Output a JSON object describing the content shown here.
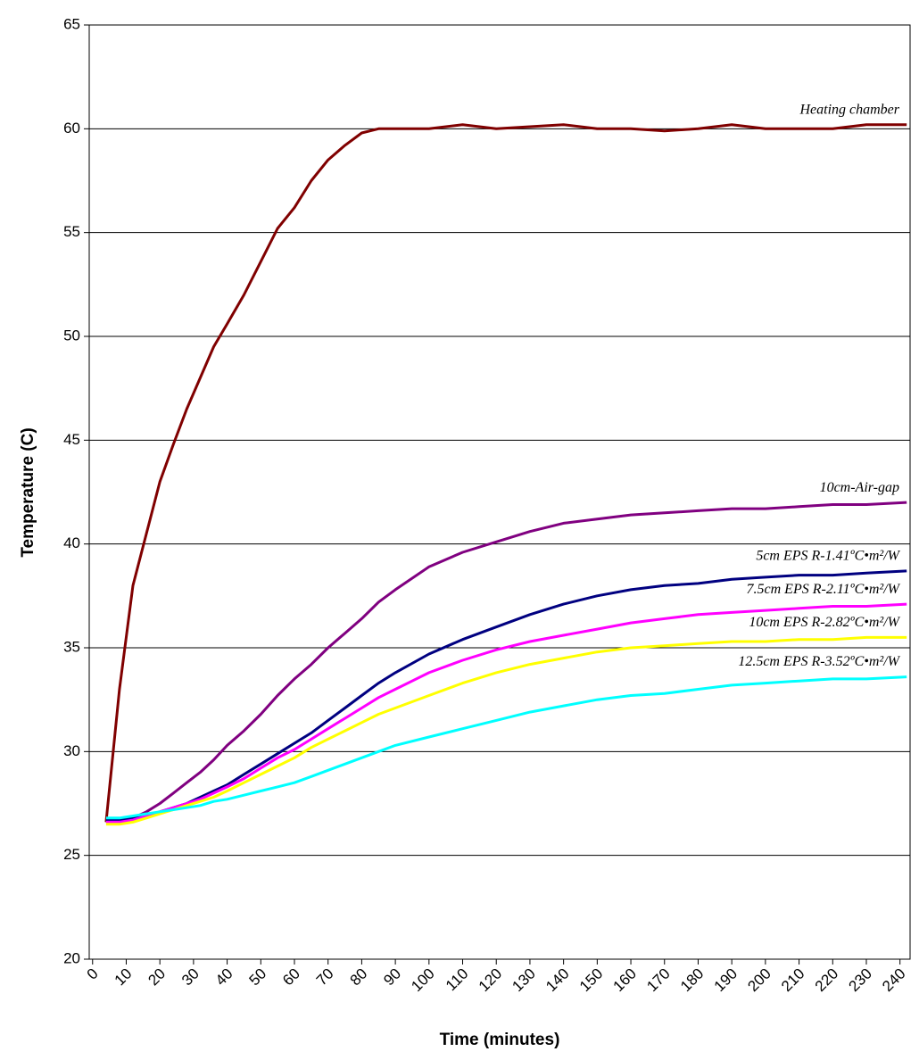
{
  "chart_data": {
    "type": "line",
    "x_label": "Time (minutes)",
    "y_label": "Temperature (C)",
    "x": [
      4,
      8,
      12,
      16,
      20,
      24,
      28,
      32,
      36,
      40,
      45,
      50,
      55,
      60,
      65,
      70,
      75,
      80,
      85,
      90,
      100,
      110,
      120,
      130,
      140,
      150,
      160,
      170,
      180,
      190,
      200,
      210,
      220,
      230,
      242
    ],
    "xlim": [
      -1,
      243
    ],
    "xticks": [
      0,
      10,
      20,
      30,
      40,
      50,
      60,
      70,
      80,
      90,
      100,
      110,
      120,
      130,
      140,
      150,
      160,
      170,
      180,
      190,
      200,
      210,
      220,
      230,
      240
    ],
    "ylim": [
      20,
      65
    ],
    "yticks": [
      20,
      25,
      30,
      35,
      40,
      45,
      50,
      55,
      60,
      65
    ],
    "grid": true,
    "series": [
      {
        "name": "Heating chamber",
        "color": "#800000",
        "values": [
          26.6,
          33,
          38,
          40.5,
          43,
          44.8,
          46.5,
          48,
          49.5,
          50.6,
          52,
          53.6,
          55.2,
          56.2,
          57.5,
          58.5,
          59.2,
          59.8,
          60,
          60,
          60,
          60.2,
          60,
          60.1,
          60.2,
          60,
          60,
          59.9,
          60,
          60.2,
          60,
          60,
          60,
          60.2,
          60.2
        ]
      },
      {
        "name": "10cm-Air-gap",
        "color": "#800080",
        "values": [
          26.6,
          26.7,
          26.8,
          27.1,
          27.5,
          28,
          28.5,
          29,
          29.6,
          30.3,
          31,
          31.8,
          32.7,
          33.5,
          34.2,
          35,
          35.7,
          36.4,
          37.2,
          37.8,
          38.9,
          39.6,
          40.1,
          40.6,
          41,
          41.2,
          41.4,
          41.5,
          41.6,
          41.7,
          41.7,
          41.8,
          41.9,
          41.9,
          42
        ]
      },
      {
        "name": "5cm EPS R-1.41ºC•m²/W",
        "color": "#000080",
        "values": [
          26.7,
          26.7,
          26.8,
          26.9,
          27.1,
          27.3,
          27.5,
          27.8,
          28.1,
          28.4,
          28.9,
          29.4,
          29.9,
          30.4,
          30.9,
          31.5,
          32.1,
          32.7,
          33.3,
          33.8,
          34.7,
          35.4,
          36,
          36.6,
          37.1,
          37.5,
          37.8,
          38,
          38.1,
          38.3,
          38.4,
          38.5,
          38.5,
          38.6,
          38.7
        ]
      },
      {
        "name": "7.5cm EPS R-2.11ºC•m²/W",
        "color": "#ff00ff",
        "values": [
          26.6,
          26.6,
          26.7,
          26.9,
          27.1,
          27.3,
          27.5,
          27.7,
          28,
          28.3,
          28.7,
          29.2,
          29.7,
          30.1,
          30.6,
          31.1,
          31.6,
          32.1,
          32.6,
          33,
          33.8,
          34.4,
          34.9,
          35.3,
          35.6,
          35.9,
          36.2,
          36.4,
          36.6,
          36.7,
          36.8,
          36.9,
          37,
          37,
          37.1
        ]
      },
      {
        "name": "10cm EPS R-2.82ºC•m²/W",
        "color": "#ffff00",
        "values": [
          26.5,
          26.5,
          26.6,
          26.8,
          27,
          27.2,
          27.4,
          27.6,
          27.8,
          28.1,
          28.5,
          28.9,
          29.3,
          29.7,
          30.2,
          30.6,
          31,
          31.4,
          31.8,
          32.1,
          32.7,
          33.3,
          33.8,
          34.2,
          34.5,
          34.8,
          35,
          35.1,
          35.2,
          35.3,
          35.3,
          35.4,
          35.4,
          35.5,
          35.5
        ]
      },
      {
        "name": "12.5cm EPS R-3.52ºC•m²/W",
        "color": "#00ffff",
        "values": [
          26.8,
          26.8,
          26.9,
          27,
          27.1,
          27.2,
          27.3,
          27.4,
          27.6,
          27.7,
          27.9,
          28.1,
          28.3,
          28.5,
          28.8,
          29.1,
          29.4,
          29.7,
          30,
          30.3,
          30.7,
          31.1,
          31.5,
          31.9,
          32.2,
          32.5,
          32.7,
          32.8,
          33,
          33.2,
          33.3,
          33.4,
          33.5,
          33.5,
          33.6
        ]
      }
    ]
  }
}
